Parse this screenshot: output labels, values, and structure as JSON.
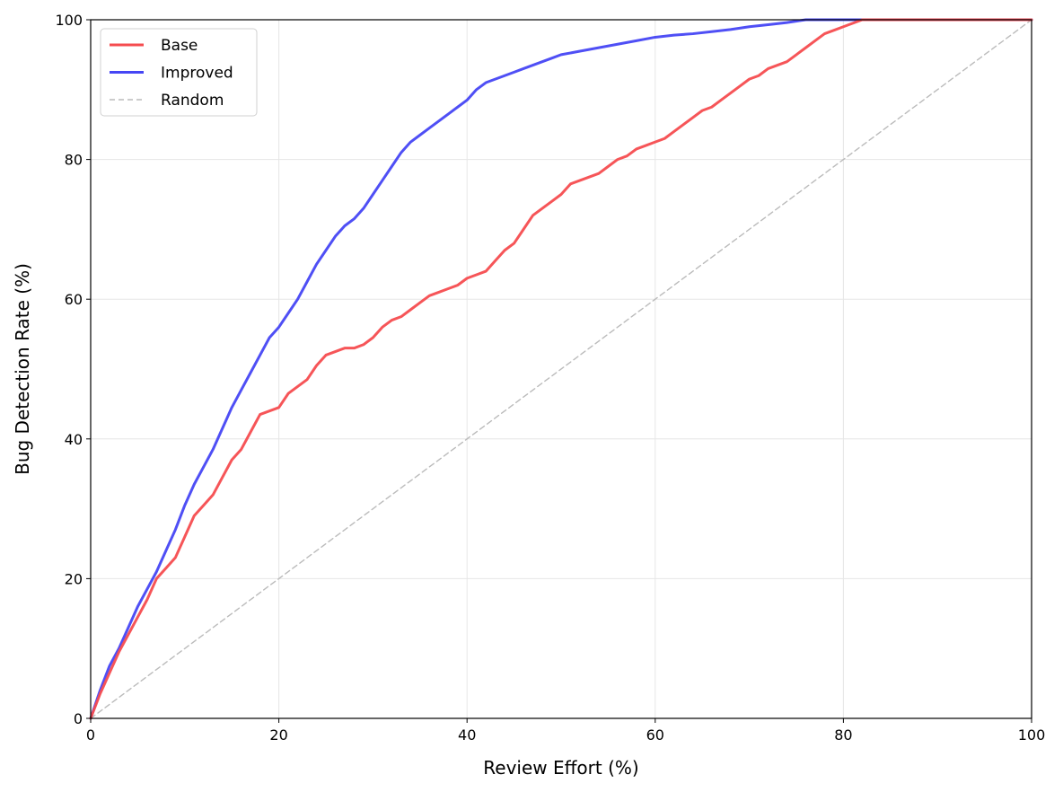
{
  "chart_data": {
    "type": "line",
    "title": "",
    "xlabel": "Review Effort (%)",
    "ylabel": "Bug Detection Rate (%)",
    "xlim": [
      0,
      100
    ],
    "ylim": [
      0,
      100
    ],
    "xticks": [
      0,
      20,
      40,
      60,
      80,
      100
    ],
    "yticks": [
      0,
      20,
      40,
      60,
      80,
      100
    ],
    "grid": true,
    "legend_position": "top-left",
    "series": [
      {
        "name": "Base",
        "color": "#f54c4f",
        "style": "solid",
        "x": [
          0,
          1,
          2,
          3,
          4,
          5,
          6,
          7,
          8,
          9,
          10,
          11,
          12,
          13,
          14,
          15,
          16,
          17,
          18,
          19,
          20,
          21,
          22,
          23,
          24,
          25,
          26,
          27,
          28,
          29,
          30,
          31,
          32,
          33,
          34,
          35,
          36,
          37,
          38,
          39,
          40,
          41,
          42,
          43,
          44,
          45,
          46,
          47,
          48,
          49,
          50,
          51,
          52,
          53,
          54,
          55,
          56,
          57,
          58,
          59,
          60,
          61,
          62,
          63,
          64,
          65,
          66,
          67,
          68,
          69,
          70,
          71,
          72,
          73,
          74,
          75,
          76,
          77,
          78,
          79,
          80,
          81,
          82,
          83,
          84,
          85,
          90,
          95,
          100
        ],
        "y": [
          0,
          3.5,
          6.5,
          9.5,
          12,
          14.5,
          17,
          20,
          21.5,
          23,
          26,
          29,
          30.5,
          32,
          34.5,
          37,
          38.5,
          41,
          43.5,
          44,
          44.5,
          46.5,
          47.5,
          48.5,
          50.5,
          52,
          52.5,
          53,
          53,
          53.5,
          54.5,
          56,
          57,
          57.5,
          58.5,
          59.5,
          60.5,
          61,
          61.5,
          62,
          63,
          63.5,
          64,
          65.5,
          67,
          68,
          70,
          72,
          73,
          74,
          75,
          76.5,
          77,
          77.5,
          78,
          79,
          80,
          80.5,
          81.5,
          82,
          82.5,
          83,
          84,
          85,
          86,
          87,
          87.5,
          88.5,
          89.5,
          90.5,
          91.5,
          92,
          93,
          93.5,
          94,
          95,
          96,
          97,
          98,
          98.5,
          99,
          99.5,
          100,
          100,
          100,
          100,
          100,
          100,
          100
        ]
      },
      {
        "name": "Improved",
        "color": "#4646f4",
        "style": "solid",
        "x": [
          0,
          1,
          2,
          3,
          4,
          5,
          6,
          7,
          8,
          9,
          10,
          11,
          12,
          13,
          14,
          15,
          16,
          17,
          18,
          19,
          20,
          21,
          22,
          23,
          24,
          25,
          26,
          27,
          28,
          29,
          30,
          31,
          32,
          33,
          34,
          35,
          36,
          37,
          38,
          39,
          40,
          41,
          42,
          43,
          44,
          45,
          46,
          47,
          48,
          49,
          50,
          52,
          54,
          56,
          58,
          60,
          62,
          64,
          66,
          68,
          70,
          72,
          74,
          76,
          80,
          84,
          88,
          92,
          96,
          100
        ],
        "y": [
          0,
          4,
          7.5,
          10,
          13,
          16,
          18.5,
          21,
          24,
          27,
          30.5,
          33.5,
          36,
          38.5,
          41.5,
          44.5,
          47,
          49.5,
          52,
          54.5,
          56,
          58,
          60,
          62.5,
          65,
          67,
          69,
          70.5,
          71.5,
          73,
          75,
          77,
          79,
          81,
          82.5,
          83.5,
          84.5,
          85.5,
          86.5,
          87.5,
          88.5,
          90,
          91,
          91.5,
          92,
          92.5,
          93,
          93.5,
          94,
          94.5,
          95,
          95.5,
          96,
          96.5,
          97,
          97.5,
          97.8,
          98,
          98.3,
          98.6,
          99,
          99.3,
          99.6,
          100,
          100,
          100,
          100,
          100,
          100,
          100
        ]
      },
      {
        "name": "Random",
        "color": "#bbbbbb",
        "style": "dashed",
        "x": [
          0,
          100
        ],
        "y": [
          0,
          100
        ]
      }
    ]
  }
}
